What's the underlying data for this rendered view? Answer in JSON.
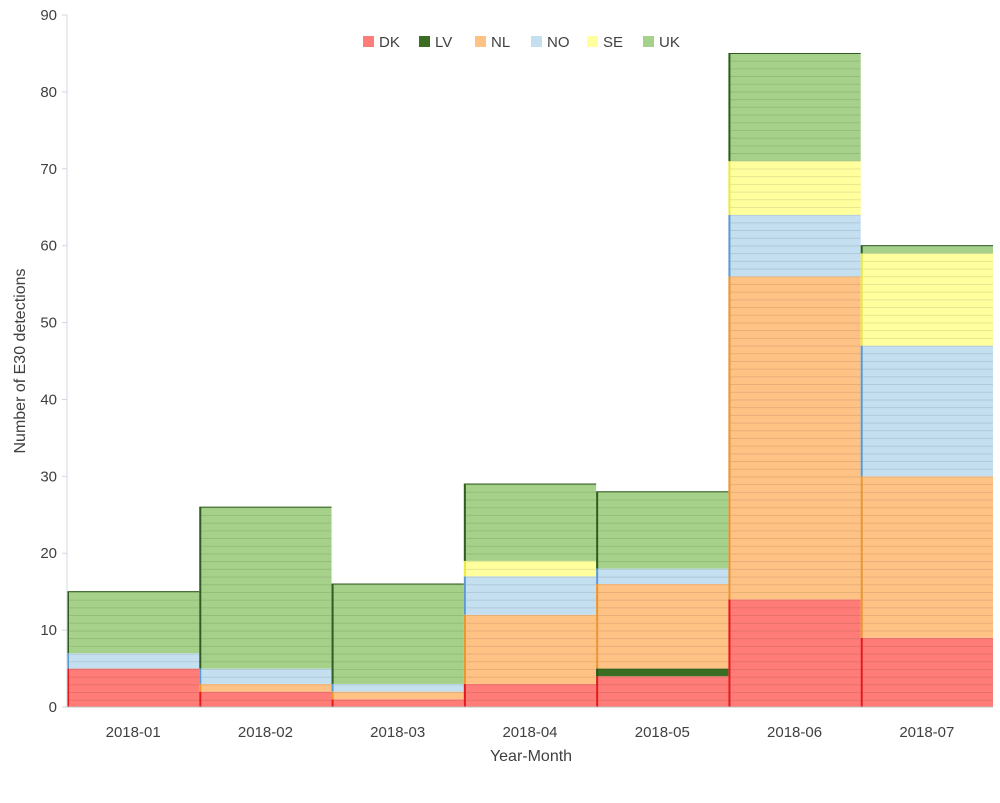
{
  "chart_data": {
    "type": "bar",
    "stacked": true,
    "bar_gap": "none",
    "title": "",
    "xlabel": "Year-Month",
    "ylabel": "Number of E30 detections",
    "ylim": [
      0,
      90
    ],
    "ytick_step": 10,
    "grid": false,
    "legend_position": "top-center",
    "categories": [
      "2018-01",
      "2018-02",
      "2018-03",
      "2018-04",
      "2018-05",
      "2018-06",
      "2018-07"
    ],
    "series": [
      {
        "name": "DK",
        "color": "#ff7c78",
        "edge": "#e31a1c",
        "values": [
          5,
          2,
          1,
          3,
          4,
          14,
          9
        ]
      },
      {
        "name": "LV",
        "color": "#3b6e22",
        "edge": "#2a5517",
        "values": [
          0,
          0,
          0,
          0,
          1,
          0,
          0
        ]
      },
      {
        "name": "NL",
        "color": "#ffc285",
        "edge": "#e9962f",
        "values": [
          0,
          1,
          1,
          9,
          11,
          42,
          21
        ]
      },
      {
        "name": "NO",
        "color": "#c4dff0",
        "edge": "#5b9bd5",
        "values": [
          2,
          2,
          1,
          5,
          2,
          8,
          17
        ]
      },
      {
        "name": "SE",
        "color": "#ffff9e",
        "edge": "#e8e84a",
        "values": [
          0,
          0,
          0,
          2,
          0,
          7,
          12
        ]
      },
      {
        "name": "UK",
        "color": "#a6d18a",
        "edge": "#2f5d1f",
        "values": [
          8,
          21,
          13,
          10,
          10,
          14,
          1
        ]
      }
    ]
  }
}
